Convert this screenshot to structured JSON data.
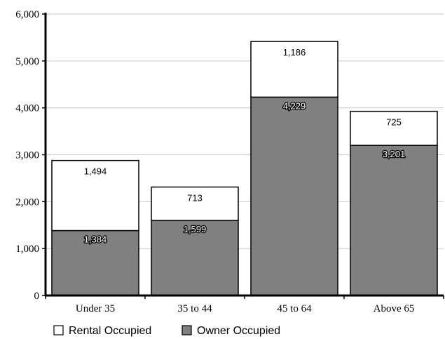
{
  "chart_data": {
    "type": "bar",
    "stacked": true,
    "categories": [
      "Under 35",
      "35 to 44",
      "45 to 64",
      "Above 65"
    ],
    "series": [
      {
        "name": "Owner Occupied",
        "values": [
          1384,
          1599,
          4229,
          3201
        ],
        "color": "#808080"
      },
      {
        "name": "Rental Occupied",
        "values": [
          1494,
          713,
          1186,
          725
        ],
        "color": "#ffffff"
      }
    ],
    "y_ticks": [
      "0",
      "1,000",
      "2,000",
      "3,000",
      "4,000",
      "5,000",
      "6,000"
    ],
    "ylim": [
      0,
      6000
    ],
    "grid": true,
    "legend_position": "bottom-left",
    "data_labels": [
      [
        "1,384",
        "1,599",
        "4,229",
        "3,201"
      ],
      [
        "1,494",
        "713",
        "1,186",
        "725"
      ]
    ]
  }
}
